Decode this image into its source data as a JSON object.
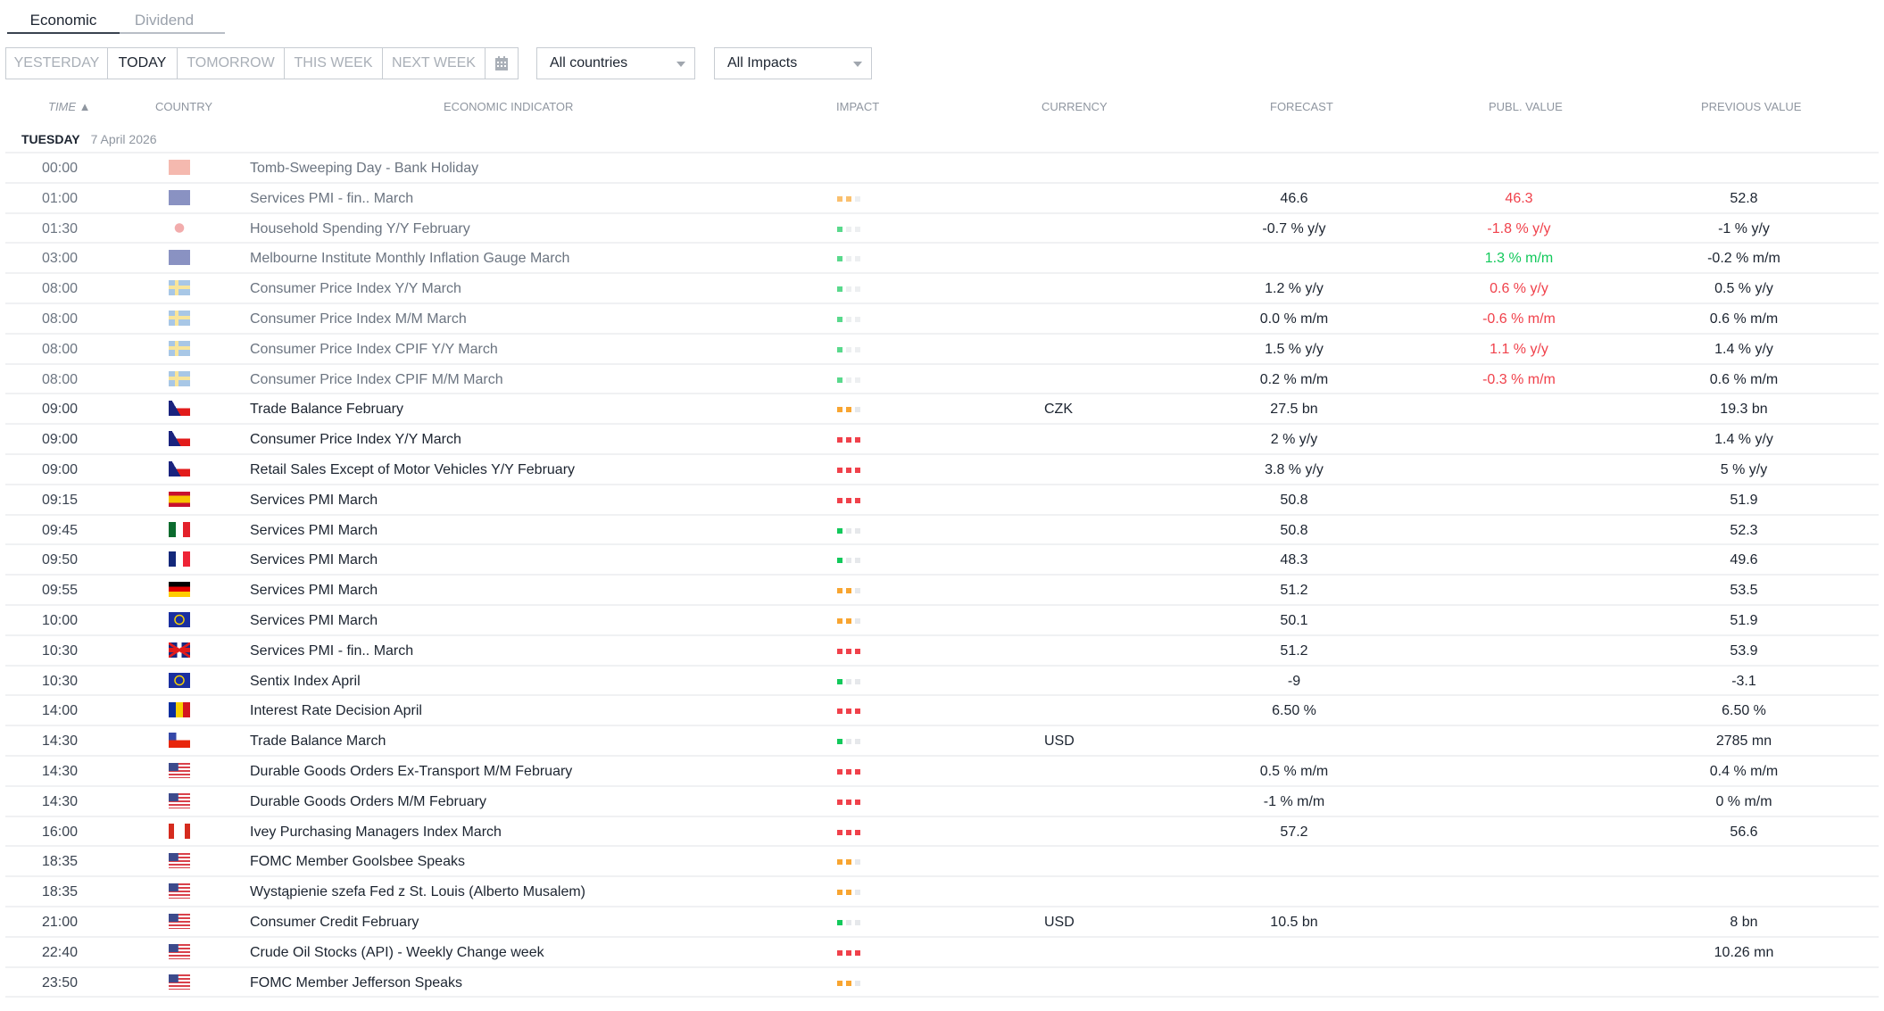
{
  "tabs": [
    "Economic",
    "Dividend"
  ],
  "range_buttons": [
    "YESTERDAY",
    "TODAY",
    "TOMORROW",
    "THIS WEEK",
    "NEXT WEEK"
  ],
  "selected_range": "TODAY",
  "filters": {
    "countries": "All countries",
    "impacts": "All Impacts"
  },
  "columns": {
    "time": "TIME ▲",
    "country": "COUNTRY",
    "indicator": "ECONOMIC INDICATOR",
    "impact": "IMPACT",
    "currency": "CURRENCY",
    "forecast": "FORECAST",
    "published": "PUBL. VALUE",
    "previous": "PREVIOUS VALUE"
  },
  "date": {
    "day": "TUESDAY",
    "date": "7 April 2026"
  },
  "colors": {
    "high": "#f0414b",
    "medium": "#f8a531",
    "low": "#12c95b",
    "positive": "#12c95b",
    "negative": "#f0414b"
  },
  "events": [
    {
      "time": "00:00",
      "country": "cn",
      "indicator": "Tomb-Sweeping Day - Bank Holiday",
      "impact": 0,
      "currency": "",
      "forecast": "",
      "published": "",
      "previous": "",
      "past": true
    },
    {
      "time": "01:00",
      "country": "au",
      "indicator": "Services PMI - fin.. March",
      "impact": 2,
      "currency": "",
      "forecast": "46.6",
      "published": "46.3",
      "pub_trend": "negative",
      "previous": "52.8",
      "past": true
    },
    {
      "time": "01:30",
      "country": "jp",
      "indicator": "Household Spending Y/Y February",
      "impact": 1,
      "currency": "",
      "forecast": "-0.7 % y/y",
      "published": "-1.8 % y/y",
      "pub_trend": "negative",
      "previous": "-1 % y/y",
      "past": true
    },
    {
      "time": "03:00",
      "country": "au",
      "indicator": "Melbourne Institute Monthly Inflation Gauge March",
      "impact": 1,
      "currency": "",
      "forecast": "",
      "published": "1.3 % m/m",
      "pub_trend": "positive",
      "previous": "-0.2 % m/m",
      "past": true
    },
    {
      "time": "08:00",
      "country": "se",
      "indicator": "Consumer Price Index Y/Y March",
      "impact": 1,
      "currency": "",
      "forecast": "1.2 % y/y",
      "published": "0.6 % y/y",
      "pub_trend": "negative",
      "previous": "0.5 % y/y",
      "past": true
    },
    {
      "time": "08:00",
      "country": "se",
      "indicator": "Consumer Price Index M/M March",
      "impact": 1,
      "currency": "",
      "forecast": "0.0 % m/m",
      "published": "-0.6 % m/m",
      "pub_trend": "negative",
      "previous": "0.6 % m/m",
      "past": true
    },
    {
      "time": "08:00",
      "country": "se",
      "indicator": "Consumer Price Index CPIF Y/Y March",
      "impact": 1,
      "currency": "",
      "forecast": "1.5 % y/y",
      "published": "1.1 % y/y",
      "pub_trend": "negative",
      "previous": "1.4 % y/y",
      "past": true
    },
    {
      "time": "08:00",
      "country": "se",
      "indicator": "Consumer Price Index CPIF M/M March",
      "impact": 1,
      "currency": "",
      "forecast": "0.2 % m/m",
      "published": "-0.3 % m/m",
      "pub_trend": "negative",
      "previous": "0.6 % m/m",
      "past": true
    },
    {
      "time": "09:00",
      "country": "cz",
      "indicator": "Trade Balance February",
      "impact": 2,
      "currency": "CZK",
      "forecast": "27.5 bn",
      "published": "",
      "previous": "19.3 bn"
    },
    {
      "time": "09:00",
      "country": "cz",
      "indicator": "Consumer Price Index Y/Y March",
      "impact": 3,
      "currency": "",
      "forecast": "2 % y/y",
      "published": "",
      "previous": "1.4 % y/y"
    },
    {
      "time": "09:00",
      "country": "cz",
      "indicator": "Retail Sales Except of Motor Vehicles Y/Y February",
      "impact": 3,
      "currency": "",
      "forecast": "3.8 % y/y",
      "published": "",
      "previous": "5 % y/y"
    },
    {
      "time": "09:15",
      "country": "es",
      "indicator": "Services PMI March",
      "impact": 3,
      "currency": "",
      "forecast": "50.8",
      "published": "",
      "previous": "51.9"
    },
    {
      "time": "09:45",
      "country": "it",
      "indicator": "Services PMI March",
      "impact": 1,
      "currency": "",
      "forecast": "50.8",
      "published": "",
      "previous": "52.3"
    },
    {
      "time": "09:50",
      "country": "fr",
      "indicator": "Services PMI March",
      "impact": 1,
      "currency": "",
      "forecast": "48.3",
      "published": "",
      "previous": "49.6"
    },
    {
      "time": "09:55",
      "country": "de",
      "indicator": "Services PMI March",
      "impact": 2,
      "currency": "",
      "forecast": "51.2",
      "published": "",
      "previous": "53.5"
    },
    {
      "time": "10:00",
      "country": "eu",
      "indicator": "Services PMI March",
      "impact": 2,
      "currency": "",
      "forecast": "50.1",
      "published": "",
      "previous": "51.9"
    },
    {
      "time": "10:30",
      "country": "gb",
      "indicator": "Services PMI - fin.. March",
      "impact": 3,
      "currency": "",
      "forecast": "51.2",
      "published": "",
      "previous": "53.9"
    },
    {
      "time": "10:30",
      "country": "eu",
      "indicator": "Sentix Index April",
      "impact": 1,
      "currency": "",
      "forecast": "-9",
      "published": "",
      "previous": "-3.1"
    },
    {
      "time": "14:00",
      "country": "ro",
      "indicator": "Interest Rate Decision April",
      "impact": 3,
      "currency": "",
      "forecast": "6.50 %",
      "published": "",
      "previous": "6.50 %"
    },
    {
      "time": "14:30",
      "country": "cl",
      "indicator": "Trade Balance March",
      "impact": 1,
      "currency": "USD",
      "forecast": "",
      "published": "",
      "previous": "2785 mn"
    },
    {
      "time": "14:30",
      "country": "us",
      "indicator": "Durable Goods Orders Ex-Transport M/M February",
      "impact": 3,
      "currency": "",
      "forecast": "0.5 % m/m",
      "published": "",
      "previous": "0.4 % m/m"
    },
    {
      "time": "14:30",
      "country": "us",
      "indicator": "Durable Goods Orders M/M February",
      "impact": 3,
      "currency": "",
      "forecast": "-1 % m/m",
      "published": "",
      "previous": "0 % m/m"
    },
    {
      "time": "16:00",
      "country": "ca",
      "indicator": "Ivey Purchasing Managers Index March",
      "impact": 3,
      "currency": "",
      "forecast": "57.2",
      "published": "",
      "previous": "56.6"
    },
    {
      "time": "18:35",
      "country": "us",
      "indicator": "FOMC Member Goolsbee Speaks",
      "impact": 2,
      "currency": "",
      "forecast": "",
      "published": "",
      "previous": ""
    },
    {
      "time": "18:35",
      "country": "us",
      "indicator": "Wystąpienie szefa Fed z St. Louis (Alberto Musalem)",
      "impact": 2,
      "currency": "",
      "forecast": "",
      "published": "",
      "previous": ""
    },
    {
      "time": "21:00",
      "country": "us",
      "indicator": "Consumer Credit February",
      "impact": 1,
      "currency": "USD",
      "forecast": "10.5 bn",
      "published": "",
      "previous": "8 bn"
    },
    {
      "time": "22:40",
      "country": "us",
      "indicator": "Crude Oil Stocks (API) - Weekly Change week",
      "impact": 3,
      "currency": "",
      "forecast": "",
      "published": "",
      "previous": "10.26 mn"
    },
    {
      "time": "23:50",
      "country": "us",
      "indicator": "FOMC Member Jefferson Speaks",
      "impact": 2,
      "currency": "",
      "forecast": "",
      "published": "",
      "previous": ""
    }
  ]
}
